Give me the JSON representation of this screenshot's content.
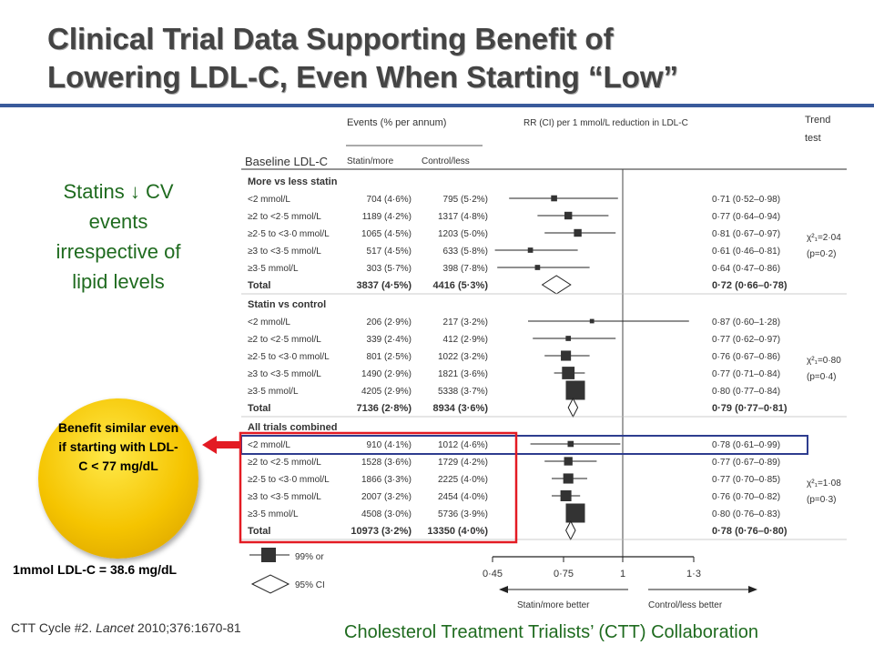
{
  "slide": {
    "title_line1": "Clinical Trial Data Supporting Benefit of",
    "title_line2": "Lowering LDL-C, Even When Starting “Low”",
    "side_text": "Statins ↓ CV events irrespective of lipid levels",
    "bubble_text": "Benefit similar even if starting with LDL-C < 77 mg/dL",
    "conversion_note": "1mmol LDL-C = 38.6 mg/dL",
    "citation_plain": "CTT Cycle #2. ",
    "citation_journal": "Lancet",
    "citation_ref": " 2010;376:1670-81",
    "collaboration": "Cholesterol Treatment Trialists’ (CTT) Collaboration",
    "colors": {
      "title": "#444444",
      "rule": "#3a5a9b",
      "green_text": "#1f6b1f",
      "highlight_box": "#e31b23",
      "blue_box": "#2e3d8f",
      "bubble": "#f5c400"
    }
  },
  "chart_data": {
    "type": "forest",
    "header_events": "Events (% per annum)",
    "header_rr": "RR (CI) per 1 mmol/L reduction in LDL-C",
    "header_trend_line1": "Trend",
    "header_trend_line2": "test",
    "col_baseline": "Baseline LDL-C",
    "col_statin": "Statin/more",
    "col_control": "Control/less",
    "x_ticks": [
      "0·45",
      "0·75",
      "1",
      "1·3"
    ],
    "x_tick_values": [
      0.45,
      0.75,
      1.0,
      1.3
    ],
    "xlim": [
      0.45,
      1.3
    ],
    "x_left_label": "Statin/more better",
    "x_right_label": "Control/less better",
    "legend_box_label": "99% or",
    "legend_diamond_label": "95% CI",
    "sections": [
      {
        "name": "More vs less statin",
        "trend_chi": "χ²₁=2·04",
        "trend_p": "(p=0·2)",
        "rows": [
          {
            "label": "<2 mmol/L",
            "statin": "704 (4·6%)",
            "control": "795 (5·2%)",
            "ci_text": "0·71 (0·52–0·98)",
            "rr": 0.71,
            "lo": 0.52,
            "hi": 0.98,
            "weight": 0.2
          },
          {
            "label": "≥2 to <2·5 mmol/L",
            "statin": "1189 (4·2%)",
            "control": "1317 (4·8%)",
            "ci_text": "0·77 (0·64–0·94)",
            "rr": 0.77,
            "lo": 0.64,
            "hi": 0.94,
            "weight": 0.3
          },
          {
            "label": "≥2·5 to <3·0 mmol/L",
            "statin": "1065 (4·5%)",
            "control": "1203 (5·0%)",
            "ci_text": "0·81 (0·67–0·97)",
            "rr": 0.81,
            "lo": 0.67,
            "hi": 0.97,
            "weight": 0.3
          },
          {
            "label": "≥3 to <3·5 mmol/L",
            "statin": "517 (4·5%)",
            "control": "633 (5·8%)",
            "ci_text": "0·61 (0·46–0·81)",
            "rr": 0.61,
            "lo": 0.46,
            "hi": 0.81,
            "weight": 0.15
          },
          {
            "label": "≥3·5 mmol/L",
            "statin": "303 (5·7%)",
            "control": "398 (7·8%)",
            "ci_text": "0·64 (0·47–0·86)",
            "rr": 0.64,
            "lo": 0.47,
            "hi": 0.86,
            "weight": 0.15
          }
        ],
        "total": {
          "label": "Total",
          "statin": "3837 (4·5%)",
          "control": "4416 (5·3%)",
          "ci_text": "0·72 (0·66–0·78)",
          "rr": 0.72,
          "lo": 0.66,
          "hi": 0.78
        }
      },
      {
        "name": "Statin vs control",
        "trend_chi": "χ²₁=0·80",
        "trend_p": "(p=0·4)",
        "rows": [
          {
            "label": "<2 mmol/L",
            "statin": "206 (2·9%)",
            "control": "217 (3·2%)",
            "ci_text": "0·87 (0·60–1·28)",
            "rr": 0.87,
            "lo": 0.6,
            "hi": 1.28,
            "weight": 0.1
          },
          {
            "label": "≥2 to <2·5 mmol/L",
            "statin": "339 (2·4%)",
            "control": "412 (2·9%)",
            "ci_text": "0·77 (0·62–0·97)",
            "rr": 0.77,
            "lo": 0.62,
            "hi": 0.97,
            "weight": 0.15
          },
          {
            "label": "≥2·5 to <3·0 mmol/L",
            "statin": "801 (2·5%)",
            "control": "1022 (3·2%)",
            "ci_text": "0·76 (0·67–0·86)",
            "rr": 0.76,
            "lo": 0.67,
            "hi": 0.86,
            "weight": 0.45
          },
          {
            "label": "≥3 to <3·5 mmol/L",
            "statin": "1490 (2·9%)",
            "control": "1821 (3·6%)",
            "ci_text": "0·77 (0·71–0·84)",
            "rr": 0.77,
            "lo": 0.71,
            "hi": 0.84,
            "weight": 0.6
          },
          {
            "label": "≥3·5 mmol/L",
            "statin": "4205 (2·9%)",
            "control": "5338 (3·7%)",
            "ci_text": "0·80 (0·77–0·84)",
            "rr": 0.8,
            "lo": 0.77,
            "hi": 0.84,
            "weight": 1.0
          }
        ],
        "total": {
          "label": "Total",
          "statin": "7136 (2·8%)",
          "control": "8934 (3·6%)",
          "ci_text": "0·79 (0·77–0·81)",
          "rr": 0.79,
          "lo": 0.77,
          "hi": 0.81
        }
      },
      {
        "name": "All trials combined",
        "trend_chi": "χ²₁=1·08",
        "trend_p": "(p=0·3)",
        "rows": [
          {
            "label": "<2 mmol/L",
            "statin": "910 (4·1%)",
            "control": "1012 (4·6%)",
            "ci_text": "0·78 (0·61–0·99)",
            "rr": 0.78,
            "lo": 0.61,
            "hi": 0.99,
            "weight": 0.2
          },
          {
            "label": "≥2 to <2·5 mmol/L",
            "statin": "1528 (3·6%)",
            "control": "1729 (4·2%)",
            "ci_text": "0·77 (0·67–0·89)",
            "rr": 0.77,
            "lo": 0.67,
            "hi": 0.89,
            "weight": 0.35
          },
          {
            "label": "≥2·5 to <3·0 mmol/L",
            "statin": "1866 (3·3%)",
            "control": "2225 (4·0%)",
            "ci_text": "0·77 (0·70–0·85)",
            "rr": 0.77,
            "lo": 0.7,
            "hi": 0.85,
            "weight": 0.45
          },
          {
            "label": "≥3 to <3·5 mmol/L",
            "statin": "2007 (3·2%)",
            "control": "2454 (4·0%)",
            "ci_text": "0·76 (0·70–0·82)",
            "rr": 0.76,
            "lo": 0.7,
            "hi": 0.82,
            "weight": 0.5
          },
          {
            "label": "≥3·5 mmol/L",
            "statin": "4508 (3·0%)",
            "control": "5736 (3·9%)",
            "ci_text": "0·80 (0·76–0·83)",
            "rr": 0.8,
            "lo": 0.76,
            "hi": 0.83,
            "weight": 1.0
          }
        ],
        "total": {
          "label": "Total",
          "statin": "10973 (3·2%)",
          "control": "13350 (4·0%)",
          "ci_text": "0·78 (0·76–0·80)",
          "rr": 0.78,
          "lo": 0.76,
          "hi": 0.8
        }
      }
    ]
  }
}
